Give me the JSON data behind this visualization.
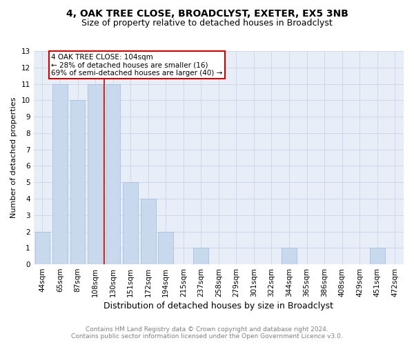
{
  "title": "4, OAK TREE CLOSE, BROADCLYST, EXETER, EX5 3NB",
  "subtitle": "Size of property relative to detached houses in Broadclyst",
  "xlabel": "Distribution of detached houses by size in Broadclyst",
  "ylabel": "Number of detached properties",
  "categories": [
    "44sqm",
    "65sqm",
    "87sqm",
    "108sqm",
    "130sqm",
    "151sqm",
    "172sqm",
    "194sqm",
    "215sqm",
    "237sqm",
    "258sqm",
    "279sqm",
    "301sqm",
    "322sqm",
    "344sqm",
    "365sqm",
    "386sqm",
    "408sqm",
    "429sqm",
    "451sqm",
    "472sqm"
  ],
  "values": [
    2,
    11,
    10,
    11,
    11,
    5,
    4,
    2,
    0,
    1,
    0,
    0,
    0,
    0,
    1,
    0,
    0,
    0,
    0,
    1,
    0
  ],
  "bar_color": "#c9d9ed",
  "bar_edgecolor": "#a0b8d8",
  "ylim": [
    0,
    13
  ],
  "yticks": [
    0,
    1,
    2,
    3,
    4,
    5,
    6,
    7,
    8,
    9,
    10,
    11,
    12,
    13
  ],
  "vline_x": 3.5,
  "vline_color": "#cc0000",
  "annotation_text": "4 OAK TREE CLOSE: 104sqm\n← 28% of detached houses are smaller (16)\n69% of semi-detached houses are larger (40) →",
  "annotation_box_color": "#cc0000",
  "grid_color": "#d0d8e8",
  "background_color": "#e8eef8",
  "footer_line1": "Contains HM Land Registry data © Crown copyright and database right 2024.",
  "footer_line2": "Contains public sector information licensed under the Open Government Licence v3.0.",
  "title_fontsize": 10,
  "subtitle_fontsize": 9,
  "xlabel_fontsize": 9,
  "ylabel_fontsize": 8,
  "tick_fontsize": 7.5,
  "annotation_fontsize": 7.5,
  "footer_fontsize": 6.5
}
